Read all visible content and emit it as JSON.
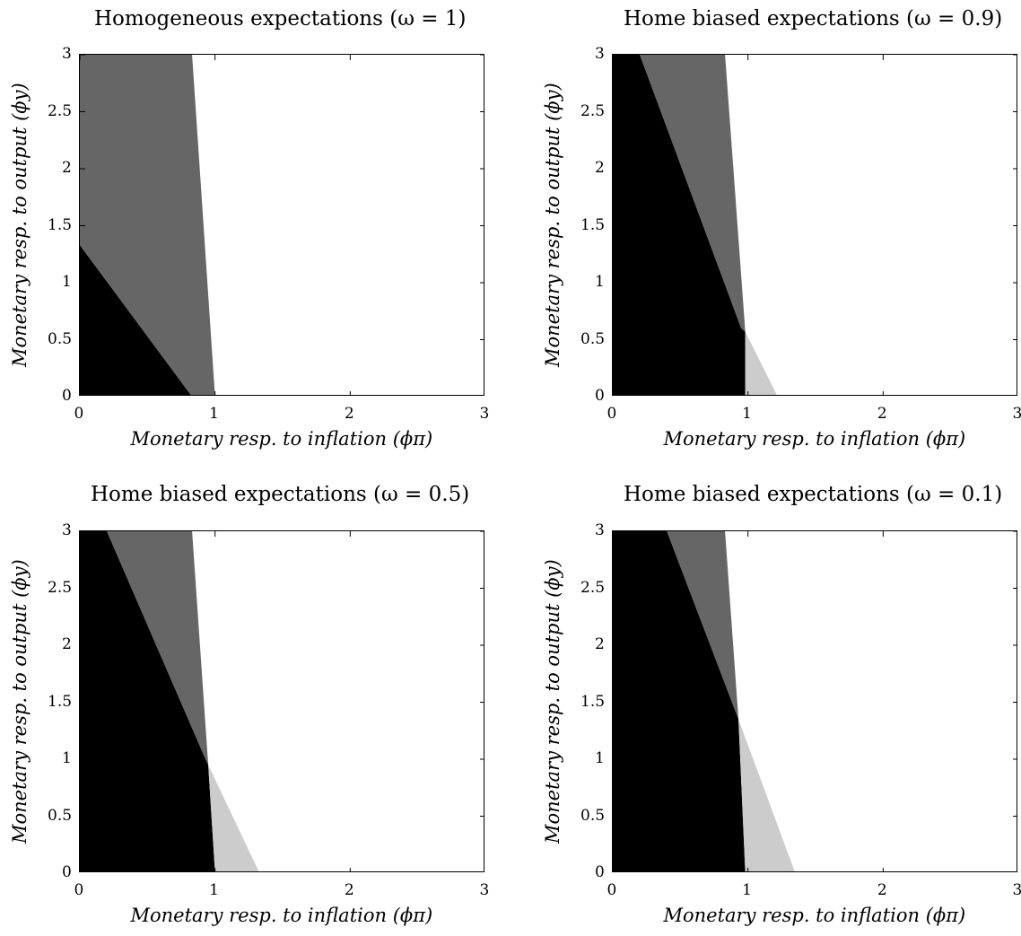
{
  "chart_data": [
    {
      "type": "heatmap",
      "title": "Homogeneous expectations (ω = 1)",
      "xlabel": "Monetary resp. to inflation (ϕπ)",
      "ylabel": "Monetary resp. to output (ϕy)",
      "xlim": [
        0,
        3
      ],
      "ylim": [
        0,
        3
      ],
      "xticks": [
        "0",
        "1",
        "2",
        "3"
      ],
      "yticks": [
        "0",
        "0.5",
        "1",
        "1.5",
        "2",
        "2.5",
        "3"
      ],
      "regions": [
        {
          "fill": "#000000",
          "polygon": [
            [
              0,
              0
            ],
            [
              0.83,
              0
            ],
            [
              0,
              1.33
            ]
          ]
        },
        {
          "fill": "#666666",
          "polygon": [
            [
              0,
              1.33
            ],
            [
              0.83,
              0
            ],
            [
              1.0,
              0
            ],
            [
              0.83,
              3
            ],
            [
              0,
              3
            ]
          ]
        }
      ]
    },
    {
      "type": "heatmap",
      "title": "Home biased expectations (ω = 0.9)",
      "xlabel": "Monetary resp. to inflation (ϕπ)",
      "ylabel": "Monetary resp. to output (ϕy)",
      "xlim": [
        0,
        3
      ],
      "ylim": [
        0,
        3
      ],
      "xticks": [
        "0",
        "1",
        "2",
        "3"
      ],
      "yticks": [
        "0",
        "0.5",
        "1",
        "1.5",
        "2",
        "2.5",
        "3"
      ],
      "regions": [
        {
          "fill": "#000000",
          "polygon": [
            [
              0,
              0
            ],
            [
              0.98,
              0
            ],
            [
              0.98,
              0.57
            ],
            [
              0.95,
              0.6
            ],
            [
              0.2,
              3
            ],
            [
              0,
              3
            ]
          ]
        },
        {
          "fill": "#666666",
          "polygon": [
            [
              0.2,
              3
            ],
            [
              0.95,
              0.6
            ],
            [
              0.98,
              0.57
            ],
            [
              0.83,
              3
            ]
          ]
        },
        {
          "fill": "#cccccc",
          "polygon": [
            [
              0.98,
              0
            ],
            [
              1.22,
              0
            ],
            [
              0.98,
              0.57
            ]
          ]
        }
      ]
    },
    {
      "type": "heatmap",
      "title": "Home biased expectations (ω = 0.5)",
      "xlabel": "Monetary resp. to inflation (ϕπ)",
      "ylabel": "Monetary resp. to output (ϕy)",
      "xlim": [
        0,
        3
      ],
      "ylim": [
        0,
        3
      ],
      "xticks": [
        "0",
        "1",
        "2",
        "3"
      ],
      "yticks": [
        "0",
        "0.5",
        "1",
        "1.5",
        "2",
        "2.5",
        "3"
      ],
      "regions": [
        {
          "fill": "#000000",
          "polygon": [
            [
              0,
              0
            ],
            [
              1.0,
              0
            ],
            [
              0.95,
              0.95
            ],
            [
              0.93,
              1.0
            ],
            [
              0.2,
              3
            ],
            [
              0,
              3
            ]
          ]
        },
        {
          "fill": "#666666",
          "polygon": [
            [
              0.2,
              3
            ],
            [
              0.93,
              1.0
            ],
            [
              0.95,
              0.95
            ],
            [
              0.83,
              3
            ]
          ]
        },
        {
          "fill": "#cccccc",
          "polygon": [
            [
              1.0,
              0
            ],
            [
              1.33,
              0
            ],
            [
              0.95,
              0.95
            ]
          ]
        }
      ]
    },
    {
      "type": "heatmap",
      "title": "Home biased expectations (ω = 0.1)",
      "xlabel": "Monetary resp. to inflation (ϕπ)",
      "ylabel": "Monetary resp. to output (ϕy)",
      "xlim": [
        0,
        3
      ],
      "ylim": [
        0,
        3
      ],
      "xticks": [
        "0",
        "1",
        "2",
        "3"
      ],
      "yticks": [
        "0",
        "0.5",
        "1",
        "1.5",
        "2",
        "2.5",
        "3"
      ],
      "regions": [
        {
          "fill": "#000000",
          "polygon": [
            [
              0,
              0
            ],
            [
              0.98,
              0
            ],
            [
              0.93,
              1.35
            ],
            [
              0.4,
              3
            ],
            [
              0,
              3
            ]
          ]
        },
        {
          "fill": "#666666",
          "polygon": [
            [
              0.4,
              3
            ],
            [
              0.93,
              1.35
            ],
            [
              0.83,
              3
            ]
          ]
        },
        {
          "fill": "#cccccc",
          "polygon": [
            [
              0.98,
              0
            ],
            [
              1.35,
              0
            ],
            [
              0.93,
              1.35
            ]
          ]
        }
      ]
    }
  ]
}
